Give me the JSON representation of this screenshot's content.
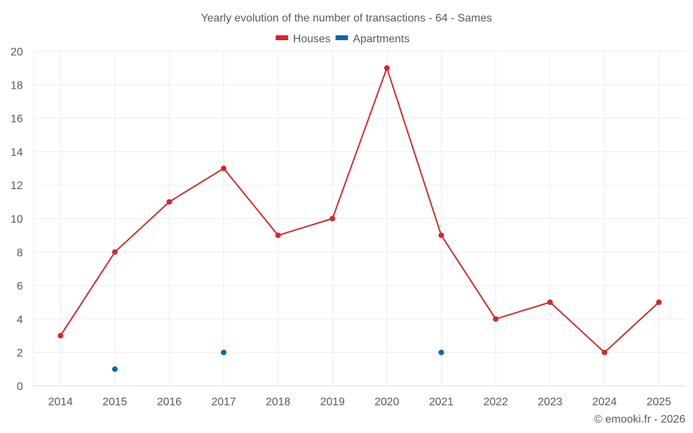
{
  "chart_data": {
    "type": "line",
    "title": "Yearly evolution of the number of transactions - 64 - Sames",
    "xlabel": "",
    "ylabel": "",
    "categories": [
      "2014",
      "2015",
      "2016",
      "2017",
      "2018",
      "2019",
      "2020",
      "2021",
      "2022",
      "2023",
      "2024",
      "2025"
    ],
    "ylim": [
      0,
      20
    ],
    "yticks": [
      0,
      2,
      4,
      6,
      8,
      10,
      12,
      14,
      16,
      18,
      20
    ],
    "grid": true,
    "legend_position": "top-center",
    "series": [
      {
        "name": "Houses",
        "color": "#d62728",
        "style": "line-markers",
        "values": [
          3,
          8,
          11,
          13,
          9,
          10,
          19,
          9,
          4,
          5,
          2,
          5
        ]
      },
      {
        "name": "Apartments",
        "color": "#0868a8",
        "style": "markers",
        "values": [
          null,
          1,
          null,
          2,
          null,
          null,
          null,
          2,
          null,
          null,
          null,
          null
        ]
      }
    ]
  },
  "credit": "© emooki.fr - 2026"
}
